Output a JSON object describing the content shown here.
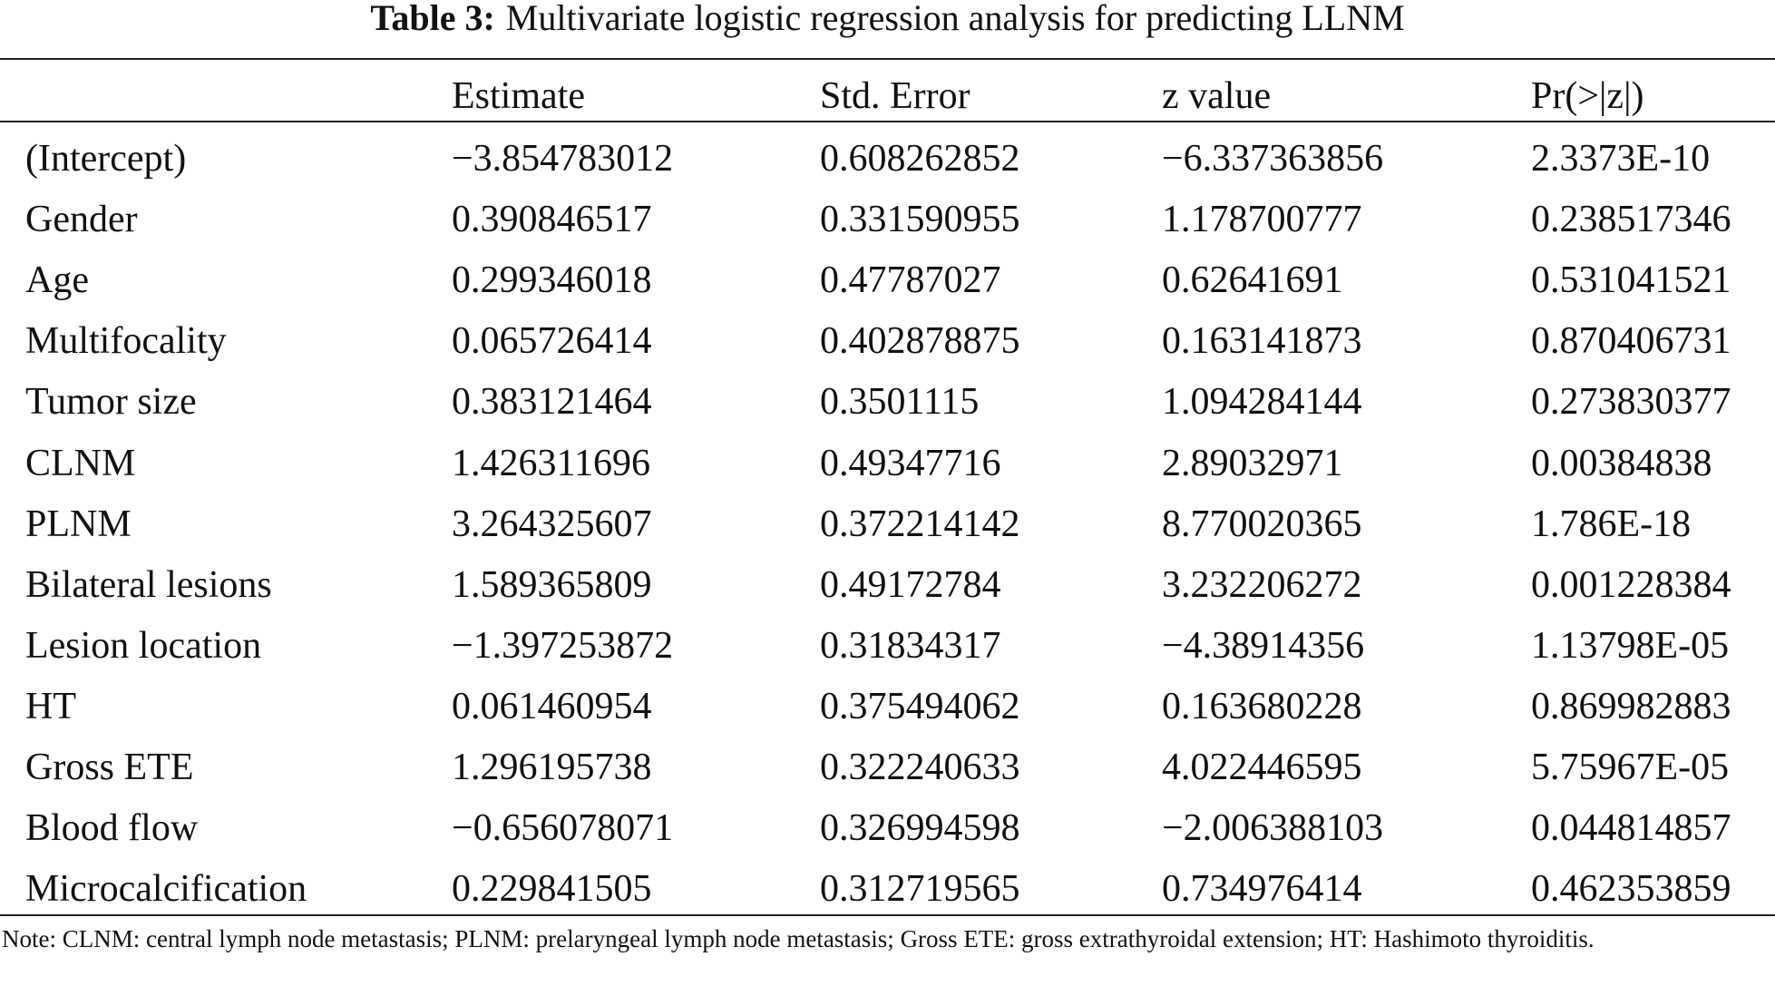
{
  "caption": {
    "label": "Table 3:",
    "text": "Multivariate logistic regression analysis for predicting LLNM"
  },
  "table": {
    "header": [
      "Estimate",
      "Std. Error",
      "z value",
      "Pr(>|z|)"
    ],
    "rows": [
      [
        "(Intercept)",
        "−3.854783012",
        "0.608262852",
        "−6.337363856",
        "2.3373E-10"
      ],
      [
        "Gender",
        "0.390846517",
        "0.331590955",
        "1.178700777",
        "0.238517346"
      ],
      [
        "Age",
        "0.299346018",
        "0.47787027",
        "0.62641691",
        "0.531041521"
      ],
      [
        "Multifocality",
        "0.065726414",
        "0.402878875",
        "0.163141873",
        "0.870406731"
      ],
      [
        "Tumor size",
        "0.383121464",
        "0.3501115",
        "1.094284144",
        "0.273830377"
      ],
      [
        "CLNM",
        "1.426311696",
        "0.49347716",
        "2.89032971",
        "0.00384838"
      ],
      [
        "PLNM",
        "3.264325607",
        "0.372214142",
        "8.770020365",
        "1.786E-18"
      ],
      [
        "Bilateral lesions",
        "1.589365809",
        "0.49172784",
        "3.232206272",
        "0.001228384"
      ],
      [
        "Lesion location",
        "−1.397253872",
        "0.31834317",
        "−4.38914356",
        "1.13798E-05"
      ],
      [
        "HT",
        "0.061460954",
        "0.375494062",
        "0.163680228",
        "0.869982883"
      ],
      [
        "Gross ETE",
        "1.296195738",
        "0.322240633",
        "4.022446595",
        "5.75967E-05"
      ],
      [
        "Blood flow",
        "−0.656078071",
        "0.326994598",
        "−2.006388103",
        "0.044814857"
      ],
      [
        "Microcalcification",
        "0.229841505",
        "0.312719565",
        "0.734976414",
        "0.462353859"
      ]
    ]
  },
  "note": "Note: CLNM: central lymph node metastasis; PLNM: prelaryngeal lymph node metastasis; Gross ETE: gross extrathyroidal extension; HT: Hashimoto thyroiditis."
}
